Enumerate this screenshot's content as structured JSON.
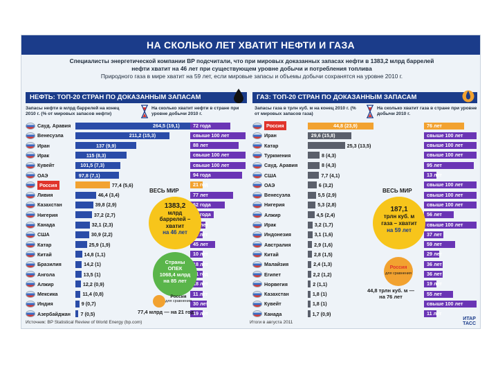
{
  "title": "НА СКОЛЬКО ЛЕТ ХВАТИТ НЕФТИ И ГАЗА",
  "lead": {
    "line1": "Специалисты энергетической компании BP подсчитали, что при мировых доказанных запасах нефти в 1383,2 млрд баррелей",
    "line2": "нефти хватит на 46 лет при существующем уровне добычи и потребления топлива",
    "line3": "Природного газа в мире хватит на 59 лет, если мировые запасы и объемы добычи сохранятся на уровне 2010 г."
  },
  "oil": {
    "header": "НЕФТЬ: ТОП-20 СТРАН ПО ДОКАЗАННЫМ ЗАПАСАМ",
    "hint_reserves": "Запасы нефти в млрд баррелей на конец 2010 г. (% от мировых запасов нефти)",
    "hint_years": "На сколько хватит нефти в стране при уровне добычи 2010 г.",
    "world": {
      "label": "ВЕСЬ МИР",
      "amount": "1383,2",
      "unit1": "млрд",
      "unit2": "баррелей –",
      "unit3": "хватит",
      "years": "на 46 лет"
    },
    "opec": {
      "l1": "Страны",
      "l2": "ОПЕК",
      "l3": "1068,4 млрд",
      "l4": "на 85 лет"
    },
    "russia_note": {
      "l1": "Россия",
      "l2": "для сравнения"
    },
    "note_bottom": "77,4 млрд — на 21 год",
    "rows": [
      {
        "country": "Сауд. Аравия",
        "reserve": 264.5,
        "label": "264,5 (19,1)",
        "years": "72 года",
        "years_val": 72,
        "highlight": false
      },
      {
        "country": "Венесуэла",
        "reserve": 211.2,
        "label": "211,2 (15,3)",
        "years": "свыше 100 лет",
        "years_val": 100,
        "highlight": false
      },
      {
        "country": "Иран",
        "reserve": 137,
        "label": "137 (9,9)",
        "years": "88 лет",
        "years_val": 88,
        "highlight": false
      },
      {
        "country": "Ирак",
        "reserve": 115,
        "label": "115 (8,3)",
        "years": "свыше 100 лет",
        "years_val": 100,
        "highlight": false
      },
      {
        "country": "Кувейт",
        "reserve": 101.5,
        "label": "101,5 (7,3)",
        "years": "свыше 100 лет",
        "years_val": 100,
        "highlight": false
      },
      {
        "country": "ОАЭ",
        "reserve": 97.8,
        "label": "97,8 (7,1)",
        "years": "94 года",
        "years_val": 94,
        "highlight": false
      },
      {
        "country": "Россия",
        "reserve": 77.4,
        "label": "77,4 (5,6)",
        "years": "21 год",
        "years_val": 21,
        "highlight": true
      },
      {
        "country": "Ливия",
        "reserve": 46.4,
        "label": "46,4 (3,4)",
        "years": "77 лет",
        "years_val": 77,
        "highlight": false
      },
      {
        "country": "Казахстан",
        "reserve": 39.8,
        "label": "39,8 (2,9)",
        "years": "62 года",
        "years_val": 62,
        "highlight": false
      },
      {
        "country": "Нигерия",
        "reserve": 37.2,
        "label": "37,2 (2,7)",
        "years": "42 года",
        "years_val": 42,
        "highlight": false
      },
      {
        "country": "Канада",
        "reserve": 32.1,
        "label": "32,1 (2,3)",
        "years": "27 лет",
        "years_val": 27,
        "highlight": false
      },
      {
        "country": "США",
        "reserve": 30.9,
        "label": "30,9 (2,2)",
        "years": "11 лет",
        "years_val": 11,
        "highlight": false
      },
      {
        "country": "Катар",
        "reserve": 25.9,
        "label": "25,9 (1,9)",
        "years": "45 лет",
        "years_val": 45,
        "highlight": false
      },
      {
        "country": "Китай",
        "reserve": 14.8,
        "label": "14,8 (1,1)",
        "years": "10 лет",
        "years_val": 10,
        "highlight": false
      },
      {
        "country": "Бразилия",
        "reserve": 14.2,
        "label": "14,2 (1)",
        "years": "18 лет",
        "years_val": 18,
        "highlight": false
      },
      {
        "country": "Ангола",
        "reserve": 13.5,
        "label": "13,5 (1)",
        "years": "21 год",
        "years_val": 21,
        "highlight": false
      },
      {
        "country": "Алжир",
        "reserve": 12.2,
        "label": "12,2 (0,9)",
        "years": "18 лет",
        "years_val": 18,
        "highlight": false
      },
      {
        "country": "Мексика",
        "reserve": 11.4,
        "label": "11,4 (0,8)",
        "years": "11 лет",
        "years_val": 11,
        "highlight": false
      },
      {
        "country": "Индия",
        "reserve": 9,
        "label": "9 (0,7)",
        "years": "30 лет",
        "years_val": 30,
        "highlight": false
      },
      {
        "country": "Азербайджан",
        "reserve": 7,
        "label": "7 (0,5)",
        "years": "19 лет",
        "years_val": 19,
        "highlight": false
      }
    ]
  },
  "gas": {
    "header": "ГАЗ: ТОП-20 СТРАН ПО ДОКАЗАННЫМ ЗАПАСАМ",
    "hint_reserves": "Запасы газа в трлн куб. м на конец 2010 г. (% от мировых запасов газа)",
    "hint_years": "На сколько хватит газа в стране при уровне добычи 2010 г.",
    "world": {
      "label": "ВЕСЬ МИР",
      "amount": "187,1",
      "unit1": "трлн куб. м",
      "unit2": "газа – хватит",
      "years": "на 59 лет"
    },
    "russia_note": {
      "l1": "Россия",
      "l2": "для сравнения"
    },
    "note_bottom_1": "44,8 трлн куб. м —",
    "note_bottom_2": "на 76 лет",
    "rows": [
      {
        "country": "Россия",
        "reserve": 44.8,
        "label": "44,8 (23,9)",
        "years": "76 лет",
        "years_val": 76,
        "highlight": true
      },
      {
        "country": "Иран",
        "reserve": 29.6,
        "label": "29,6 (15,8)",
        "years": "свыше 100 лет",
        "years_val": 100,
        "highlight": false
      },
      {
        "country": "Катар",
        "reserve": 25.3,
        "label": "25,3 (13,5)",
        "years": "свыше 100 лет",
        "years_val": 100,
        "highlight": false
      },
      {
        "country": "Туркмения",
        "reserve": 8,
        "label": "8 (4,3)",
        "years": "свыше 100 лет",
        "years_val": 100,
        "highlight": false
      },
      {
        "country": "Сауд. Аравия",
        "reserve": 8,
        "label": "8 (4,3)",
        "years": "95 лет",
        "years_val": 95,
        "highlight": false
      },
      {
        "country": "США",
        "reserve": 7.7,
        "label": "7,7 (4,1)",
        "years": "13 лет",
        "years_val": 13,
        "highlight": false
      },
      {
        "country": "ОАЭ",
        "reserve": 6,
        "label": "6 (3,2)",
        "years": "свыше 100 лет",
        "years_val": 100,
        "highlight": false
      },
      {
        "country": "Венесуэла",
        "reserve": 5.5,
        "label": "5,5 (2,9)",
        "years": "свыше 100 лет",
        "years_val": 100,
        "highlight": false
      },
      {
        "country": "Нигерия",
        "reserve": 5.3,
        "label": "5,3 (2,8)",
        "years": "свыше 100 лет",
        "years_val": 100,
        "highlight": false
      },
      {
        "country": "Алжир",
        "reserve": 4.5,
        "label": "4,5 (2,4)",
        "years": "56 лет",
        "years_val": 56,
        "highlight": false
      },
      {
        "country": "Ирак",
        "reserve": 3.2,
        "label": "3,2 (1,7)",
        "years": "свыше 100 лет",
        "years_val": 100,
        "highlight": false
      },
      {
        "country": "Индонезия",
        "reserve": 3.1,
        "label": "3,1 (1,6)",
        "years": "37 лет",
        "years_val": 37,
        "highlight": false
      },
      {
        "country": "Австралия",
        "reserve": 2.9,
        "label": "2,9 (1,6)",
        "years": "59 лет",
        "years_val": 59,
        "highlight": false
      },
      {
        "country": "Китай",
        "reserve": 2.8,
        "label": "2,8 (1,5)",
        "years": "29 лет",
        "years_val": 29,
        "highlight": false
      },
      {
        "country": "Малайзия",
        "reserve": 2.4,
        "label": "2,4 (1,3)",
        "years": "36 лет",
        "years_val": 36,
        "highlight": false
      },
      {
        "country": "Египет",
        "reserve": 2.2,
        "label": "2,2 (1,2)",
        "years": "36 лет",
        "years_val": 36,
        "highlight": false
      },
      {
        "country": "Норвегия",
        "reserve": 2,
        "label": "2 (1,1)",
        "years": "19 лет",
        "years_val": 19,
        "highlight": false
      },
      {
        "country": "Казахстан",
        "reserve": 1.8,
        "label": "1,8 (1)",
        "years": "55 лет",
        "years_val": 55,
        "highlight": false
      },
      {
        "country": "Кувейт",
        "reserve": 1.8,
        "label": "1,8 (1)",
        "years": "свыше 100 лет",
        "years_val": 100,
        "highlight": false
      },
      {
        "country": "Канада",
        "reserve": 1.7,
        "label": "1,7 (0,9)",
        "years": "11 лет",
        "years_val": 11,
        "highlight": false
      }
    ]
  },
  "source": "Источник: BP Statistical Review of World Energy (bp.com)",
  "credit": "Итоги в августа 2011",
  "tass_1": "ИТАР",
  "tass_2": "ТАСС",
  "colors": {
    "navy": "#1b3c8a",
    "oil_bar": "#2a4ca8",
    "gas_bar": "#5a5f6b",
    "highlight": "#f2a230",
    "years_bar": "#6a35b5",
    "world_circle": "#f7c51b",
    "opec_circle": "#5ab54a"
  },
  "chart_data": [
    {
      "type": "bar",
      "title": "НЕФТЬ: ТОП-20 СТРАН ПО ДОКАЗАННЫМ ЗАПАСАМ",
      "categories": [
        "Сауд. Аравия",
        "Венесуэла",
        "Иран",
        "Ирак",
        "Кувейт",
        "ОАЭ",
        "Россия",
        "Ливия",
        "Казахстан",
        "Нигерия",
        "Канада",
        "США",
        "Катар",
        "Китай",
        "Бразилия",
        "Ангола",
        "Алжир",
        "Мексика",
        "Индия",
        "Азербайджан"
      ],
      "series": [
        {
          "values": [
            264.5,
            211.2,
            137,
            115,
            101.5,
            97.8,
            77.4,
            46.4,
            39.8,
            37.2,
            32.1,
            30.9,
            25.9,
            14.8,
            14.2,
            13.5,
            12.2,
            11.4,
            9,
            7
          ]
        }
      ]
    },
    {
      "type": "bar",
      "title": "ГАЗ: ТОП-20 СТРАН ПО ДОКАЗАННЫМ ЗАПАСАМ",
      "categories": [
        "Россия",
        "Иран",
        "Катар",
        "Туркмения",
        "Сауд. Аравия",
        "США",
        "ОАЭ",
        "Венесуэла",
        "Нигерия",
        "Алжир",
        "Ирак",
        "Индонезия",
        "Австралия",
        "Китай",
        "Малайзия",
        "Египет",
        "Норвегия",
        "Казахстан",
        "Кувейт",
        "Канада"
      ],
      "series": [
        {
          "values": [
            44.8,
            29.6,
            25.3,
            8,
            8,
            7.7,
            6,
            5.5,
            5.3,
            4.5,
            3.2,
            3.1,
            2.9,
            2.8,
            2.4,
            2.2,
            2,
            1.8,
            1.8,
            1.7
          ]
        }
      ]
    }
  ]
}
